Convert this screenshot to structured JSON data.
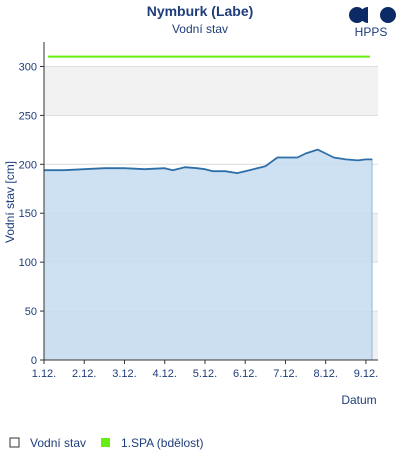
{
  "header": {
    "title": "Nymburk (Labe)",
    "subtitle": "Vodní stav"
  },
  "logo": {
    "text": "HPPS",
    "color": "#0b2a66"
  },
  "legend": [
    {
      "label": "Vodní stav",
      "icon": "square-icon"
    },
    {
      "label": "1.SPA (bdělost)",
      "icon": "square-icon",
      "color": "#66ee11"
    }
  ],
  "chart_data": {
    "type": "area",
    "xlabel": "Datum",
    "ylabel": "Vodní stav [cm]",
    "ylim": [
      0,
      325
    ],
    "xlim": [
      1,
      9.3
    ],
    "yticks": [
      0,
      50,
      100,
      150,
      200,
      250,
      300
    ],
    "xticks": [
      {
        "value": 1,
        "label": "1.12."
      },
      {
        "value": 2,
        "label": "2.12."
      },
      {
        "value": 3,
        "label": "3.12."
      },
      {
        "value": 4,
        "label": "4.12."
      },
      {
        "value": 5,
        "label": "5.12."
      },
      {
        "value": 6,
        "label": "6.12."
      },
      {
        "value": 7,
        "label": "7.12."
      },
      {
        "value": 8,
        "label": "8.12."
      },
      {
        "value": 9,
        "label": "9.12."
      }
    ],
    "bands": [
      {
        "from": 250,
        "to": 300,
        "color": "#f2f2f2"
      },
      {
        "from": 0,
        "to": 50,
        "color": "#f0f0f0"
      },
      {
        "from": 100,
        "to": 150,
        "color": "#f0f0f0"
      }
    ],
    "thresholds": [
      {
        "name": "1.SPA (bdělost)",
        "value": 310,
        "color": "#66ee11"
      }
    ],
    "series": [
      {
        "name": "Vodní stav",
        "color": "#2f6fa8",
        "fill": "#c5dcf0",
        "x": [
          1.0,
          1.5,
          2.0,
          2.5,
          3.0,
          3.5,
          4.0,
          4.2,
          4.5,
          4.8,
          5.0,
          5.2,
          5.5,
          5.8,
          6.0,
          6.2,
          6.5,
          6.8,
          7.0,
          7.3,
          7.5,
          7.8,
          8.0,
          8.2,
          8.5,
          8.8,
          9.0,
          9.15
        ],
        "values": [
          194,
          194,
          195,
          196,
          196,
          195,
          196,
          194,
          197,
          196,
          195,
          193,
          193,
          191,
          193,
          195,
          198,
          207,
          207,
          207,
          211,
          215,
          211,
          207,
          205,
          204,
          205,
          205
        ]
      }
    ]
  }
}
